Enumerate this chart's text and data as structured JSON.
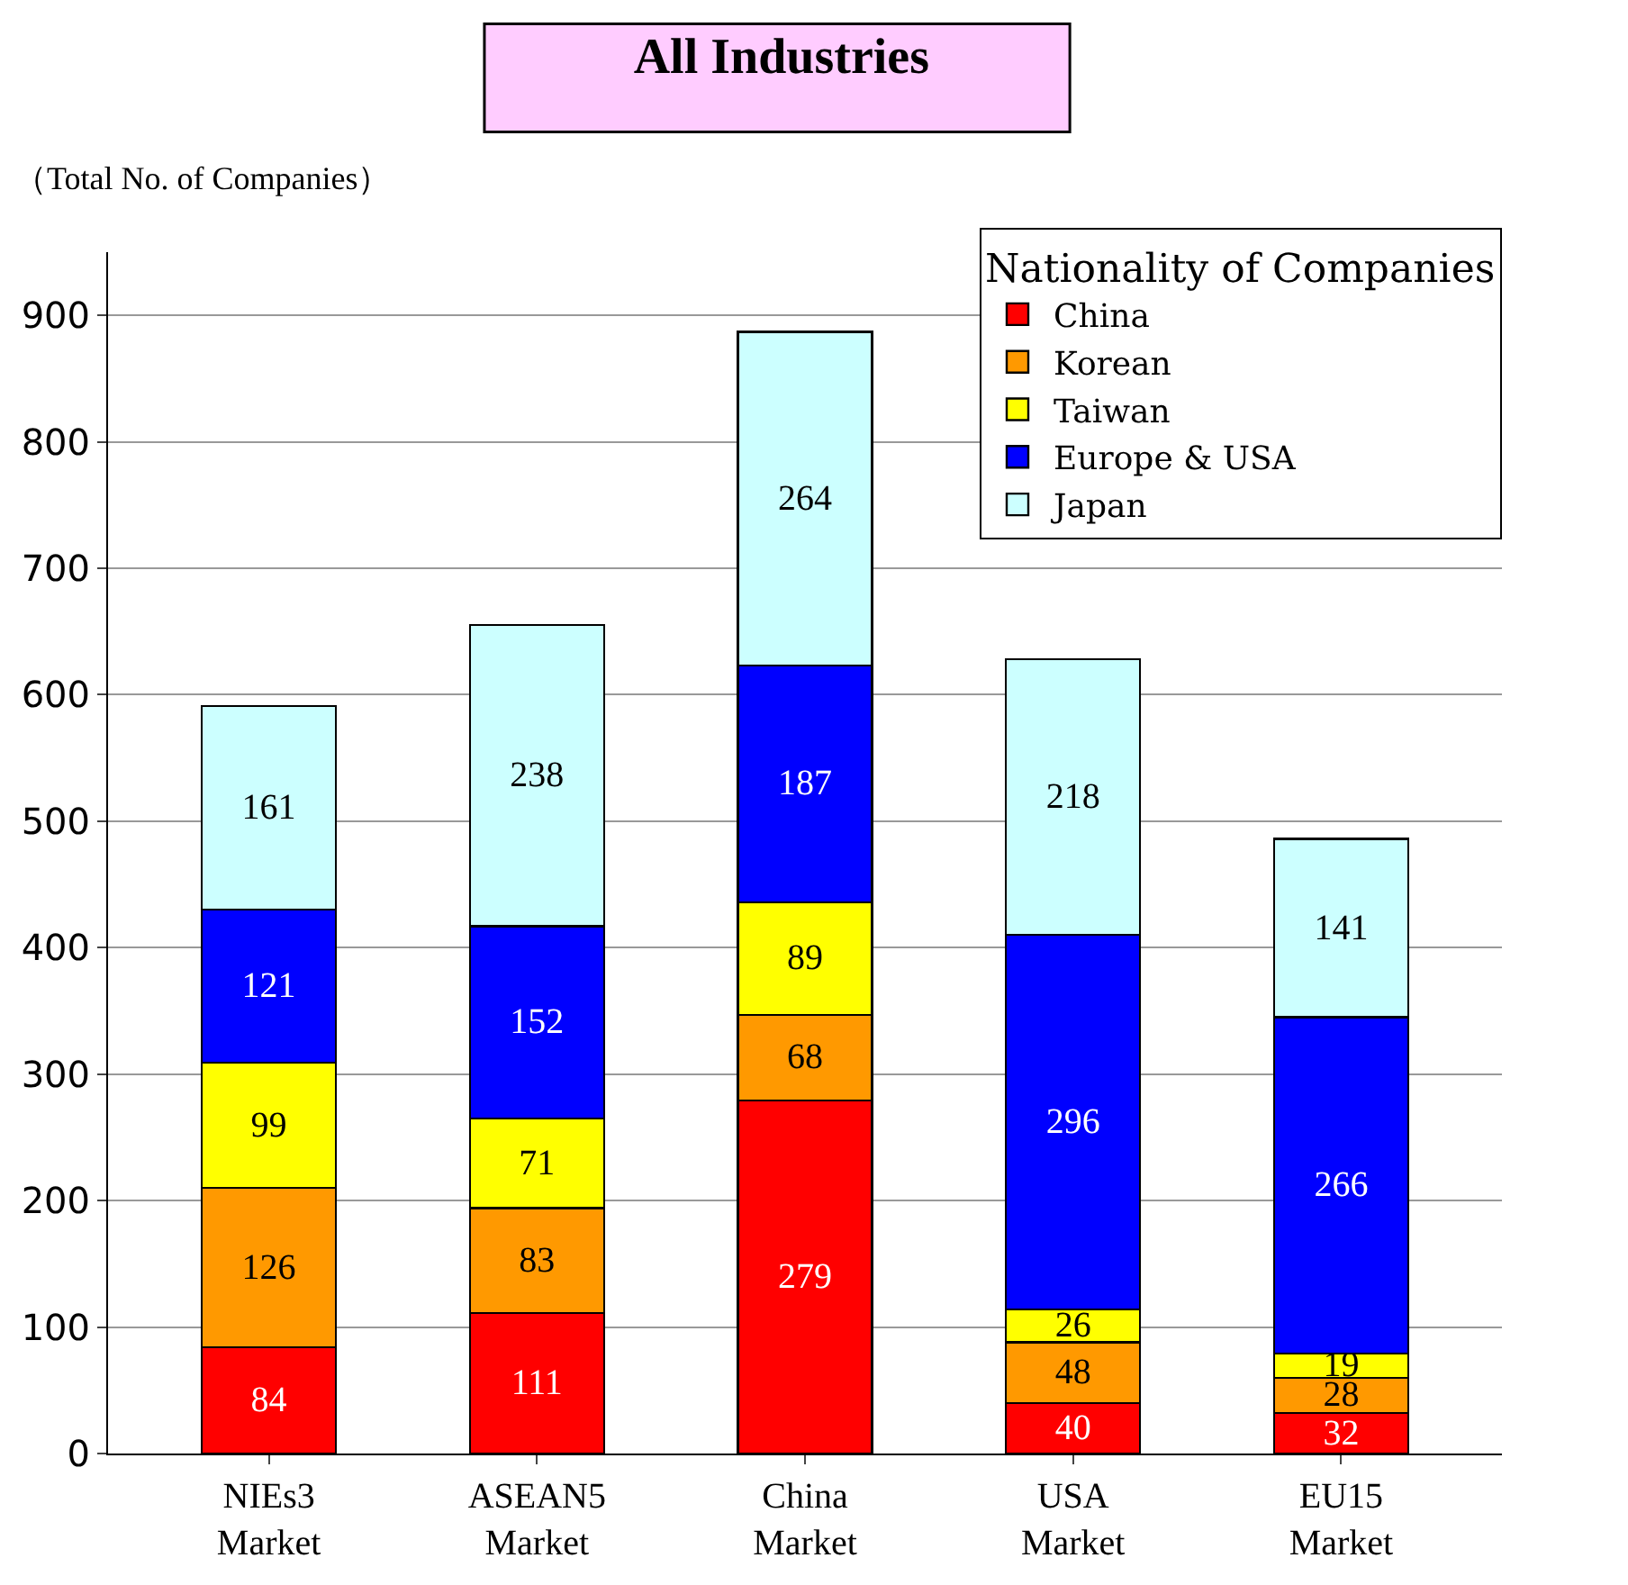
{
  "chart_data": {
    "type": "bar",
    "title": "All Industries",
    "ylabel": "（Total No. of Companies）",
    "legend_title": "Nationality of Companies",
    "categories": [
      "NIEs3\nMarket",
      "ASEAN5\nMarket",
      "China\nMarket",
      "USA\nMarket",
      "EU15\nMarket"
    ],
    "series": [
      {
        "name": "China",
        "color": "#ff0000",
        "values": [
          84,
          111,
          279,
          40,
          32
        ]
      },
      {
        "name": "Korean",
        "color": "#ff9900",
        "values": [
          126,
          83,
          68,
          48,
          28
        ]
      },
      {
        "name": "Taiwan",
        "color": "#ffff00",
        "values": [
          99,
          71,
          89,
          26,
          19
        ]
      },
      {
        "name": "Europe & USA",
        "color": "#0000ff",
        "values": [
          121,
          152,
          187,
          296,
          266
        ]
      },
      {
        "name": "Japan",
        "color": "#ccffff",
        "values": [
          161,
          238,
          264,
          218,
          141
        ]
      }
    ],
    "stacked": true,
    "data_labels": true,
    "ylim": [
      0,
      950
    ],
    "yticks": [
      0,
      100,
      200,
      300,
      400,
      500,
      600,
      700,
      800,
      900
    ],
    "grid": "y",
    "legend": "top right"
  }
}
